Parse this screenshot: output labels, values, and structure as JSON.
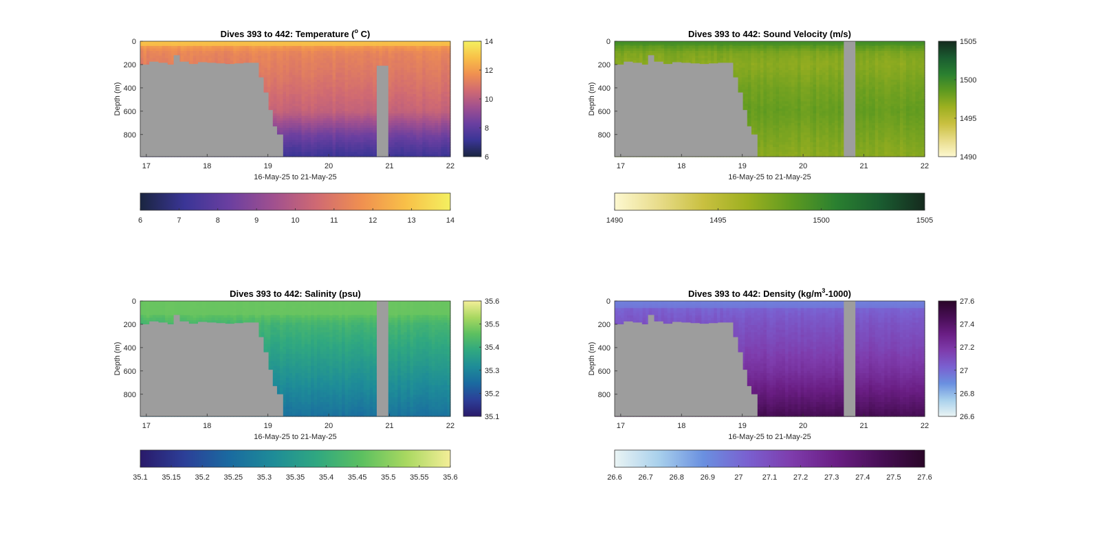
{
  "figure": {
    "axes": {
      "x_ticks": [
        "17",
        "18",
        "19",
        "20",
        "21",
        "22"
      ],
      "x_label": "16-May-25 to 21-May-25",
      "y_ticks": [
        "0",
        "200",
        "400",
        "600",
        "800"
      ],
      "y_label": "Depth (m)"
    }
  },
  "chart_data": [
    {
      "type": "heatmap",
      "variable": "temperature",
      "title_prefix": "Dives 393 to 442: Temperature (",
      "title_sup": "o",
      "title_suffix": " C)",
      "xlabel": "16-May-25 to 21-May-25",
      "ylabel": "Depth (m)",
      "xlim": [
        16.9,
        22.0
      ],
      "ylim": [
        0,
        990
      ],
      "y_reversed": true,
      "x_ticks": [
        17,
        18,
        19,
        20,
        21,
        22
      ],
      "y_ticks": [
        0,
        200,
        400,
        600,
        800
      ],
      "colormap": [
        "#1a2540",
        "#3a3596",
        "#6a3fa0",
        "#a0508f",
        "#d06a72",
        "#f09050",
        "#f8c048",
        "#f4f060"
      ],
      "clim": [
        6,
        14
      ],
      "side_colorbar_ticks": [
        "6",
        "8",
        "10",
        "12",
        "14"
      ],
      "bottom_colorbar_ticks": [
        "6",
        "7",
        "8",
        "9",
        "10",
        "11",
        "12",
        "13",
        "14"
      ],
      "surface_value": 12.8,
      "surface_depth": 40,
      "deep_value": 7.3,
      "deep_start_depth": 800,
      "profile": [
        [
          0,
          13.5
        ],
        [
          40,
          12.0
        ],
        [
          100,
          11.4
        ],
        [
          200,
          11.2
        ],
        [
          400,
          10.8
        ],
        [
          600,
          10.3
        ],
        [
          800,
          8.5
        ],
        [
          990,
          7.2
        ]
      ],
      "gap_intervals": [
        [
          20.79,
          20.98
        ]
      ]
    },
    {
      "type": "heatmap",
      "variable": "sound_velocity",
      "title_prefix": "Dives 393 to 442: Sound Velocity (m/s)",
      "title_sup": "",
      "title_suffix": "",
      "xlabel": "16-May-25 to 21-May-25",
      "ylabel": "Depth (m)",
      "xlim": [
        16.9,
        22.0
      ],
      "ylim": [
        0,
        990
      ],
      "y_reversed": true,
      "x_ticks": [
        17,
        18,
        19,
        20,
        21,
        22
      ],
      "y_ticks": [
        0,
        200,
        400,
        600,
        800
      ],
      "colormap": [
        "#fdf8d0",
        "#e8dc8a",
        "#c9c040",
        "#9db020",
        "#5e9a20",
        "#2a8030",
        "#1a5c30",
        "#152a1e"
      ],
      "clim": [
        1490,
        1505
      ],
      "side_colorbar_ticks": [
        "1490",
        "1495",
        "1500",
        "1505"
      ],
      "bottom_colorbar_ticks": [
        "1490",
        "1495",
        "1500",
        "1505"
      ],
      "surface_value": 1499.5,
      "surface_depth": 30,
      "deep_value": 1497.2,
      "deep_start_depth": 800,
      "profile": [
        [
          0,
          1500.5
        ],
        [
          30,
          1499.0
        ],
        [
          100,
          1497.5
        ],
        [
          200,
          1497.0
        ],
        [
          400,
          1497.8
        ],
        [
          600,
          1498.3
        ],
        [
          800,
          1497.6
        ],
        [
          990,
          1497.0
        ]
      ],
      "gap_intervals": [
        [
          20.67,
          20.86
        ]
      ]
    },
    {
      "type": "heatmap",
      "variable": "salinity",
      "title_prefix": "Dives 393 to 442: Salinity (psu)",
      "title_sup": "",
      "title_suffix": "",
      "xlabel": "16-May-25 to 21-May-25",
      "ylabel": "Depth (m)",
      "xlim": [
        16.9,
        22.0
      ],
      "ylim": [
        0,
        990
      ],
      "y_reversed": true,
      "x_ticks": [
        17,
        18,
        19,
        20,
        21,
        22
      ],
      "y_ticks": [
        0,
        200,
        400,
        600,
        800
      ],
      "colormap": [
        "#2a1a6a",
        "#2c3f98",
        "#1a6aa0",
        "#1e8c98",
        "#30a880",
        "#5cc060",
        "#a8d860",
        "#f4ee98"
      ],
      "clim": [
        35.1,
        35.6
      ],
      "side_colorbar_ticks": [
        "35.1",
        "35.2",
        "35.3",
        "35.4",
        "35.5",
        "35.6"
      ],
      "bottom_colorbar_ticks": [
        "35.1",
        "35.15",
        "35.2",
        "35.25",
        "35.3",
        "35.35",
        "35.4",
        "35.45",
        "35.5",
        "35.55",
        "35.6"
      ],
      "surface_value": 35.47,
      "surface_depth": 120,
      "deep_value": 35.27,
      "deep_start_depth": 800,
      "profile": [
        [
          0,
          35.47
        ],
        [
          120,
          35.46
        ],
        [
          200,
          35.42
        ],
        [
          400,
          35.38
        ],
        [
          600,
          35.34
        ],
        [
          800,
          35.3
        ],
        [
          990,
          35.26
        ]
      ],
      "gap_intervals": [
        [
          20.79,
          20.98
        ]
      ]
    },
    {
      "type": "heatmap",
      "variable": "density",
      "title_prefix": "Dives 393 to 442: Density (kg/m",
      "title_sup": "3",
      "title_suffix": "-1000)",
      "xlabel": "16-May-25 to 21-May-25",
      "ylabel": "Depth (m)",
      "xlim": [
        16.9,
        22.0
      ],
      "ylim": [
        0,
        990
      ],
      "y_reversed": true,
      "x_ticks": [
        17,
        18,
        19,
        20,
        21,
        22
      ],
      "y_ticks": [
        0,
        200,
        400,
        600,
        800
      ],
      "colormap": [
        "#eaf4f4",
        "#a8d0ec",
        "#6a90e0",
        "#7a60d0",
        "#7e3cac",
        "#6a1e84",
        "#480e56",
        "#2a0628"
      ],
      "clim": [
        26.6,
        27.6
      ],
      "side_colorbar_ticks": [
        "26.6",
        "26.8",
        "27",
        "27.2",
        "27.4",
        "27.6"
      ],
      "bottom_colorbar_ticks": [
        "26.6",
        "26.7",
        "26.8",
        "26.9",
        "27",
        "27.1",
        "27.2",
        "27.3",
        "27.4",
        "27.5",
        "27.6"
      ],
      "surface_value": 26.95,
      "surface_depth": 60,
      "deep_value": 27.48,
      "deep_start_depth": 800,
      "profile": [
        [
          0,
          26.85
        ],
        [
          60,
          27.02
        ],
        [
          200,
          27.08
        ],
        [
          400,
          27.14
        ],
        [
          600,
          27.22
        ],
        [
          800,
          27.34
        ],
        [
          990,
          27.47
        ]
      ],
      "gap_intervals": [
        [
          20.67,
          20.86
        ]
      ]
    }
  ],
  "seafloor": {
    "days": [
      16.9,
      17.05,
      17.2,
      17.35,
      17.45,
      17.55,
      17.7,
      17.85,
      18.0,
      18.15,
      18.3,
      18.45,
      18.6,
      18.75,
      18.85,
      18.93,
      19.01,
      19.08,
      19.15,
      19.25
    ],
    "depths": [
      200,
      175,
      185,
      200,
      120,
      175,
      195,
      180,
      185,
      190,
      195,
      190,
      185,
      185,
      310,
      440,
      590,
      730,
      800,
      990
    ]
  }
}
